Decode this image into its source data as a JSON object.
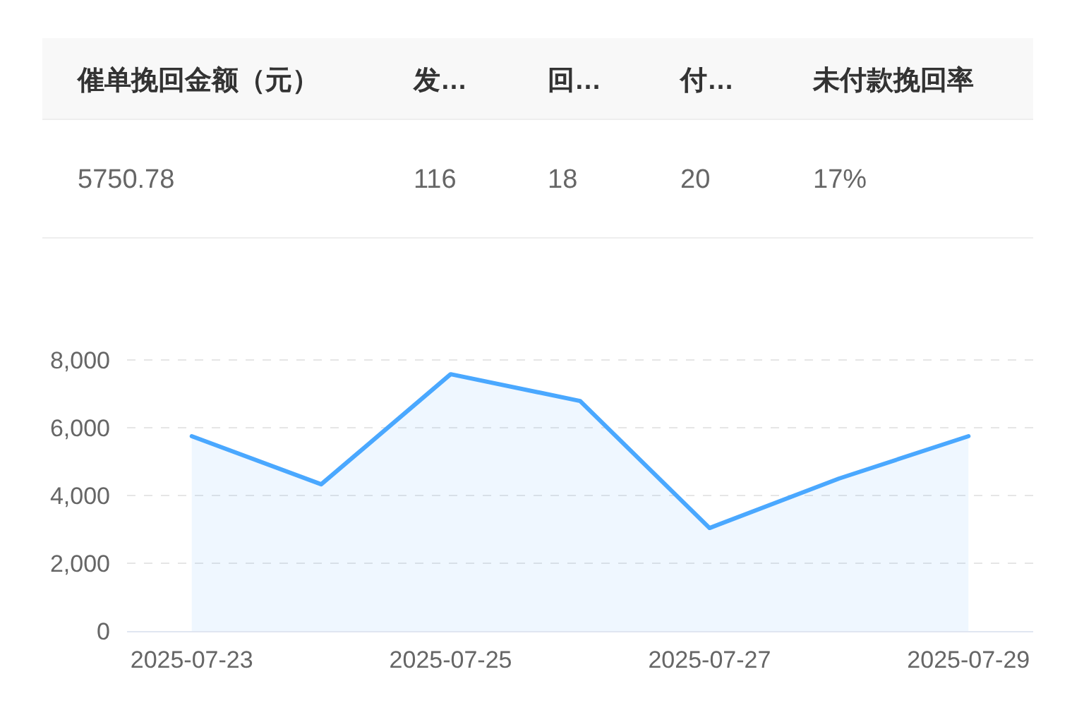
{
  "chart_data": [
    {
      "type": "other",
      "categories": [
        "催单挽回金额（元）",
        "发…",
        "回…",
        "付…",
        "未付款挽回率"
      ],
      "value_labels": [
        "5750.78",
        "116",
        "18",
        "20",
        "17%"
      ]
    },
    {
      "type": "area",
      "categories": [
        "2025-07-23",
        null,
        "2025-07-25",
        null,
        "2025-07-27",
        null,
        "2025-07-29"
      ],
      "series": [
        {
          "color": "#4aa8ff",
          "values": [
            5750,
            4330,
            7580,
            6790,
            3040,
            4500,
            5750
          ]
        }
      ],
      "ylim": [
        0,
        8000
      ],
      "yticks": [
        {
          "value": 0,
          "label": "0"
        },
        {
          "value": 2000,
          "label": "2,000"
        },
        {
          "value": 4000,
          "label": "4,000"
        },
        {
          "value": 6000,
          "label": "6,000"
        },
        {
          "value": 8000,
          "label": "8,000"
        }
      ],
      "grid": "y",
      "line_style": "solid",
      "marker": "none"
    }
  ]
}
